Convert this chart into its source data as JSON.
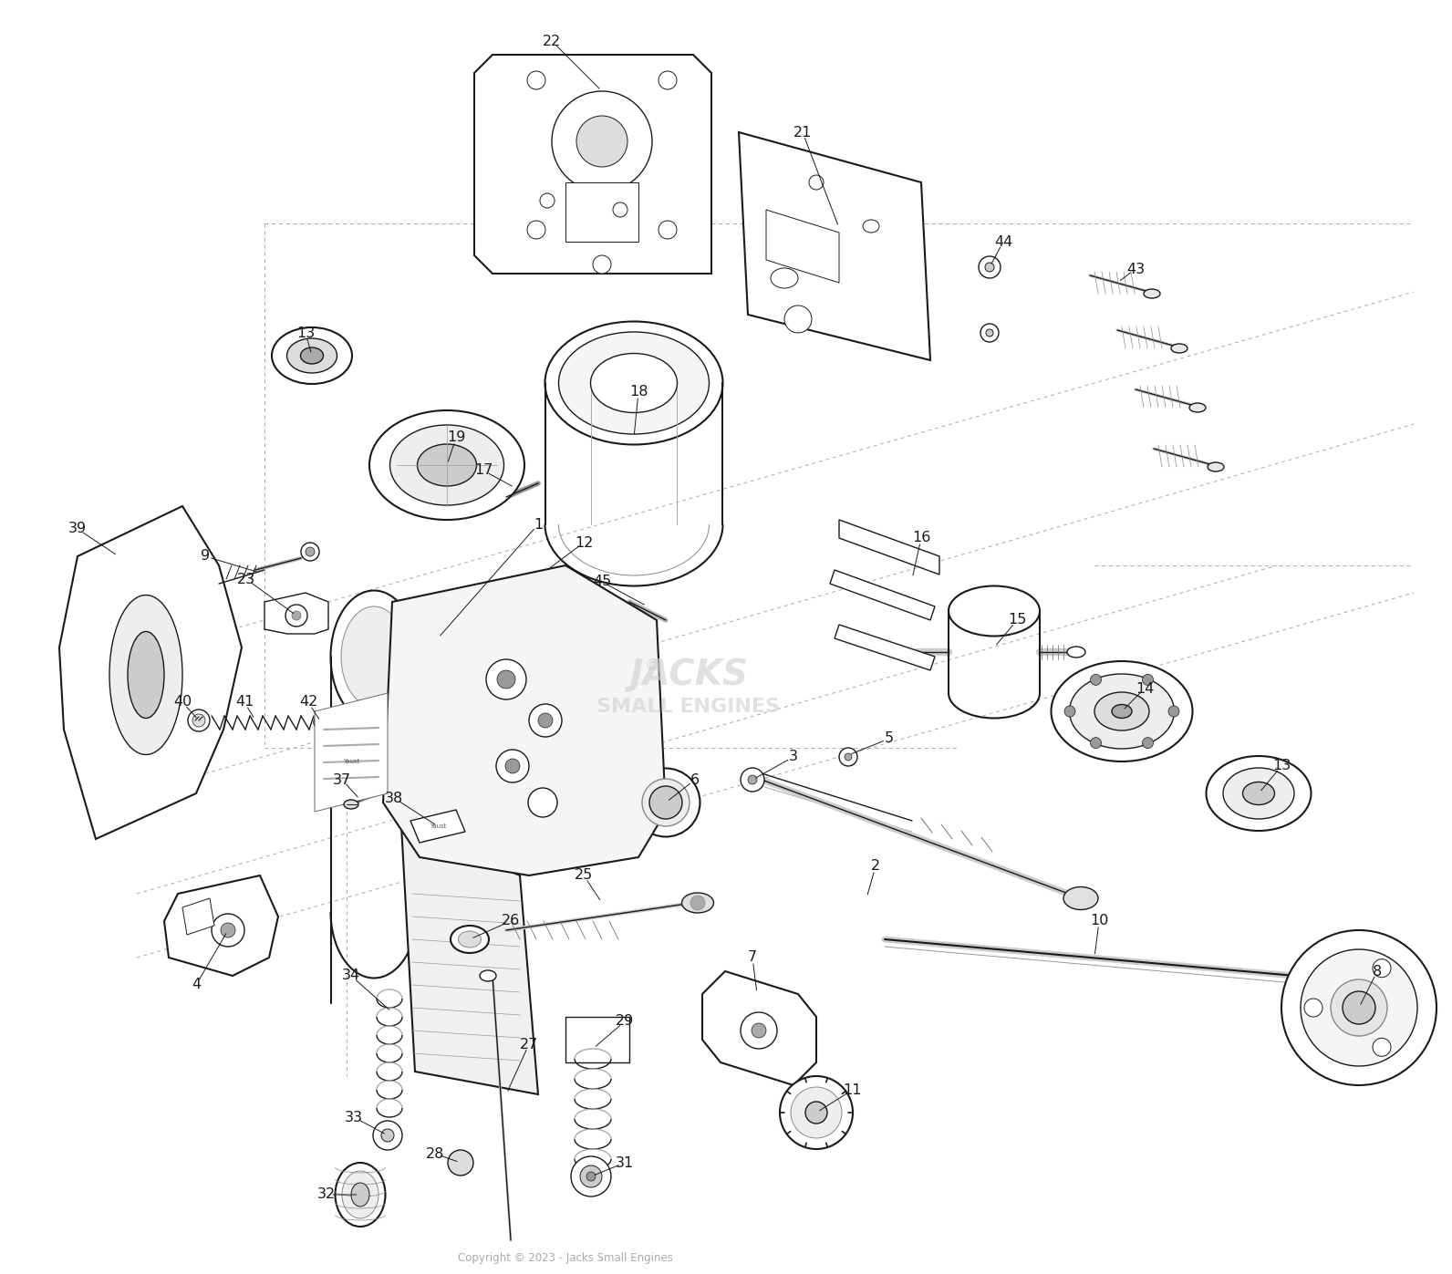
{
  "bg_color": "#ffffff",
  "lc": "#1a1a1a",
  "lw": 1.0,
  "fig_width": 15.92,
  "fig_height": 13.97,
  "dpi": 100,
  "copyright": "Copyright © 2023 - Jacks Small Engines"
}
